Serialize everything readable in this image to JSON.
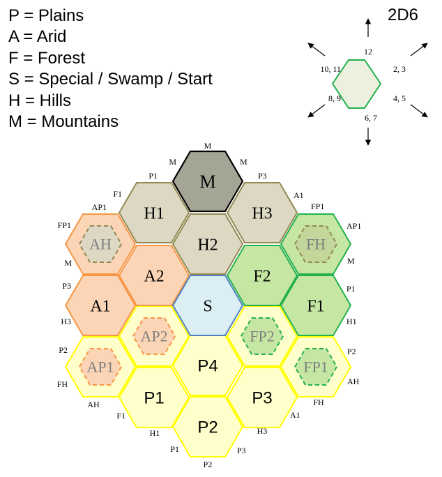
{
  "legend": [
    "P = Plains",
    "A = Arid",
    "F = Forest",
    "S = Special / Swamp / Start",
    "H = Hills",
    "M = Mountains"
  ],
  "dice": {
    "title": "2D6",
    "labels": [
      "12",
      "2, 3",
      "4, 5",
      "6, 7",
      "8, 9",
      "10, 11"
    ]
  },
  "hexes": [
    {
      "label": "M",
      "fill": "#a5a596",
      "stroke": "#000000"
    },
    {
      "label": "H1",
      "fill": "#ddd8c4",
      "stroke": "#938953"
    },
    {
      "label": "H2",
      "fill": "#ddd8c4",
      "stroke": "#938953"
    },
    {
      "label": "H3",
      "fill": "#ddd8c4",
      "stroke": "#938953"
    },
    {
      "label": "AH",
      "fill": "#fbd5b5",
      "stroke": "#f79646"
    },
    {
      "label": "A2",
      "fill": "#fbd5b5",
      "stroke": "#f79646"
    },
    {
      "label": "A1",
      "fill": "#fbd5b5",
      "stroke": "#f79646"
    },
    {
      "label": "S",
      "fill": "#daeef3",
      "stroke": "#4f81bd"
    },
    {
      "label": "F2",
      "fill": "#c6e6a4",
      "stroke": "#22b14c"
    },
    {
      "label": "FH",
      "fill": "#c6e6a4",
      "stroke": "#22b14c"
    },
    {
      "label": "F1",
      "fill": "#c6e6a4",
      "stroke": "#22b14c"
    },
    {
      "label": "AP2",
      "fill": "#ffffcc",
      "stroke": "#ffff00"
    },
    {
      "label": "FP2",
      "fill": "#ffffcc",
      "stroke": "#ffff00"
    },
    {
      "label": "AP1",
      "fill": "#ffffcc",
      "stroke": "#ffff00"
    },
    {
      "label": "P4",
      "fill": "#ffffcc",
      "stroke": "#ffff00"
    },
    {
      "label": "FP1",
      "fill": "#ffffcc",
      "stroke": "#ffff00"
    },
    {
      "label": "P1",
      "fill": "#ffffcc",
      "stroke": "#ffff00"
    },
    {
      "label": "P3",
      "fill": "#ffffcc",
      "stroke": "#ffff00"
    },
    {
      "label": "P2",
      "fill": "#ffffcc",
      "stroke": "#ffff00"
    }
  ],
  "edge_labels": [
    "M",
    "M",
    "M",
    "P1",
    "P3",
    "F1",
    "A1",
    "AP1",
    "FP1",
    "FP1",
    "AP1",
    "M",
    "M",
    "P3",
    "P1",
    "H3",
    "H1",
    "P2",
    "P2",
    "FH",
    "AH",
    "AH",
    "FH",
    "F1",
    "A1",
    "H1",
    "H3",
    "P1",
    "P3",
    "P2"
  ]
}
